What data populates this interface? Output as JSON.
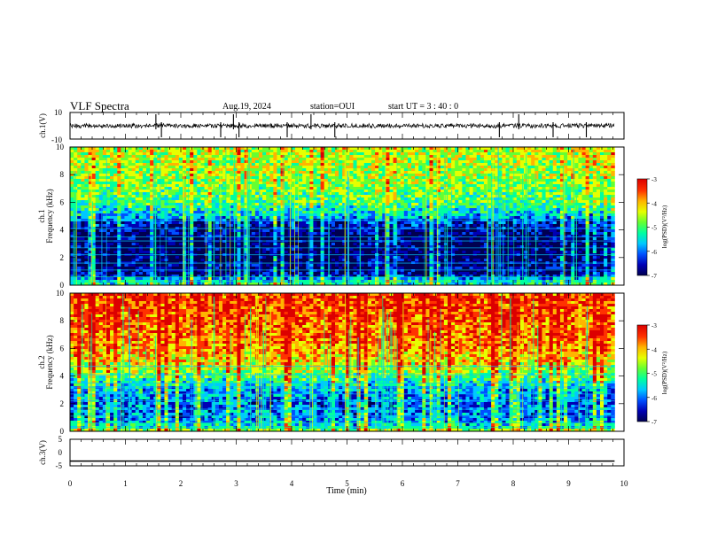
{
  "header": {
    "title": "VLF Spectra",
    "date": "Aug.19, 2024",
    "station": "station=OUI",
    "start": "start  UT =  3 : 40 : 0"
  },
  "chart_data": [
    {
      "type": "line",
      "panel": "ch1-waveform",
      "ylabel": "ch.1(V)",
      "yticks": [
        "10",
        "-10"
      ],
      "ylim": [
        -10,
        10
      ],
      "xlim": [
        0,
        10
      ],
      "data_end_min": 9.83,
      "baseline": 0,
      "spikes_min": [
        1.55,
        1.65,
        2.72,
        2.95,
        3.05,
        3.92,
        4.35,
        4.78,
        7.75,
        8.1,
        8.72,
        9.32
      ]
    },
    {
      "type": "heatmap",
      "panel": "ch1-spectrogram",
      "ylabel": "ch.1\nFrequency (kHz)",
      "ylabel_line1": "ch.1",
      "ylabel_line2": "Frequency (kHz)",
      "yticks": [
        "10",
        "8",
        "6",
        "4",
        "2",
        "0"
      ],
      "ylim": [
        0,
        10
      ],
      "xlim": [
        0,
        10
      ],
      "data_end_min": 9.83,
      "colorbar": {
        "label": "log(PSD)(V²/Hz)",
        "ticks": [
          "-3",
          "-4",
          "-5",
          "-6",
          "-7"
        ],
        "range": [
          -7,
          -3
        ]
      },
      "profile_log_psd": [
        {
          "f": 0.0,
          "v": -5.2
        },
        {
          "f": 0.4,
          "v": -5.6
        },
        {
          "f": 0.8,
          "v": -6.6
        },
        {
          "f": 1.5,
          "v": -6.7
        },
        {
          "f": 2.5,
          "v": -6.8
        },
        {
          "f": 3.5,
          "v": -6.7
        },
        {
          "f": 4.5,
          "v": -6.3
        },
        {
          "f": 5.0,
          "v": -5.6
        },
        {
          "f": 6.0,
          "v": -5.0
        },
        {
          "f": 7.0,
          "v": -4.8
        },
        {
          "f": 8.0,
          "v": -4.6
        },
        {
          "f": 10.0,
          "v": -4.5
        }
      ]
    },
    {
      "type": "heatmap",
      "panel": "ch2-spectrogram",
      "ylabel": "ch.2\nFrequency (kHz)",
      "ylabel_line1": "ch.2",
      "ylabel_line2": "Frequency (kHz)",
      "yticks": [
        "10",
        "8",
        "6",
        "4",
        "2",
        "0"
      ],
      "ylim": [
        0,
        10
      ],
      "xlim": [
        0,
        10
      ],
      "data_end_min": 9.83,
      "colorbar": {
        "label": "log(PSD)(V²/Hz)",
        "ticks": [
          "-3",
          "-4",
          "-5",
          "-6",
          "-7"
        ],
        "range": [
          -7,
          -3
        ]
      },
      "profile_log_psd": [
        {
          "f": 0.0,
          "v": -4.4
        },
        {
          "f": 0.3,
          "v": -5.4
        },
        {
          "f": 1.0,
          "v": -5.9
        },
        {
          "f": 2.0,
          "v": -6.0
        },
        {
          "f": 3.0,
          "v": -5.7
        },
        {
          "f": 4.0,
          "v": -5.0
        },
        {
          "f": 5.0,
          "v": -4.3
        },
        {
          "f": 6.0,
          "v": -3.9
        },
        {
          "f": 8.0,
          "v": -3.7
        },
        {
          "f": 10.0,
          "v": -3.6
        }
      ]
    },
    {
      "type": "line",
      "panel": "ch3-waveform",
      "ylabel": "ch.3(V)",
      "yticks": [
        "5",
        "0",
        "-5"
      ],
      "ylim": [
        -5,
        5
      ],
      "xlim": [
        0,
        10
      ],
      "data_end_min": 9.83,
      "baseline": -3.2,
      "xlabel": "Time  (min)",
      "xticks": [
        "0",
        "1",
        "2",
        "3",
        "4",
        "5",
        "6",
        "7",
        "8",
        "9",
        "10"
      ]
    }
  ],
  "colormap": [
    "#000050",
    "#0000b4",
    "#0050ff",
    "#00c8ff",
    "#00ffa0",
    "#64ff32",
    "#e6ff00",
    "#ffb400",
    "#ff3200",
    "#dc0000"
  ]
}
